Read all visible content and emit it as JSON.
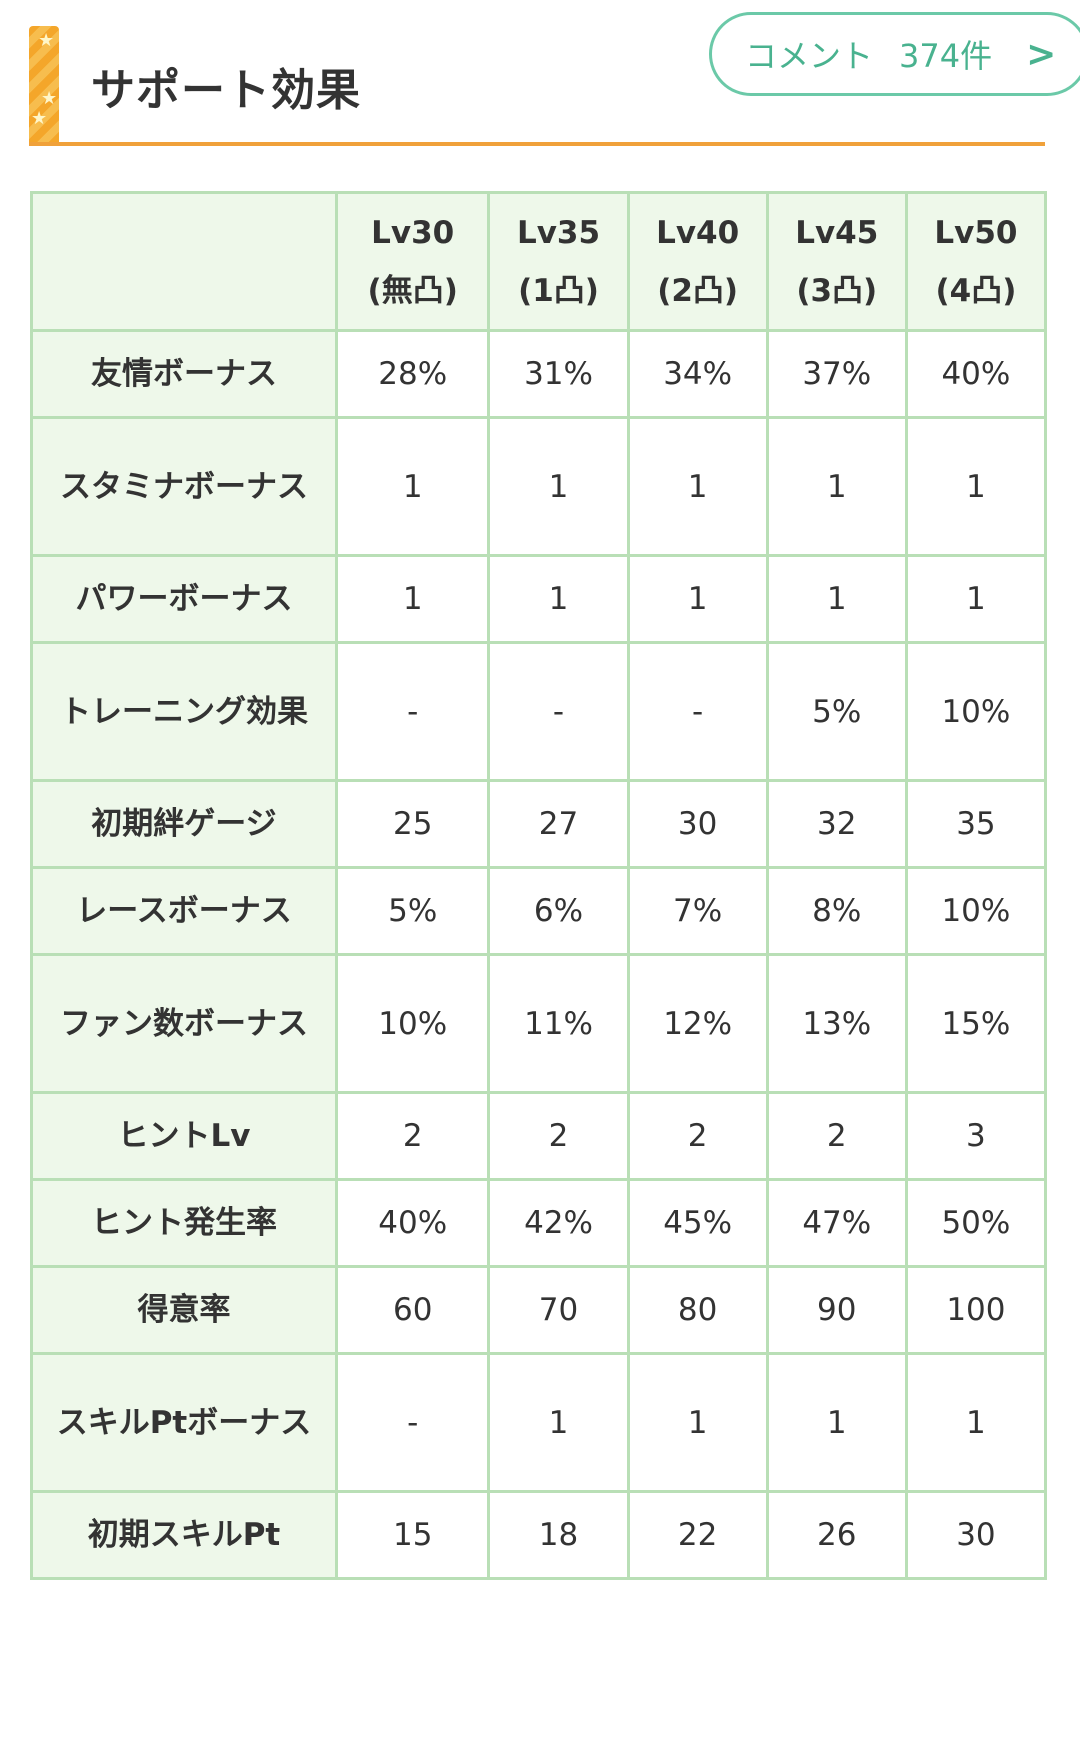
{
  "section": {
    "title": "サポート効果",
    "comment_button": {
      "label": "コメント",
      "count": "374件"
    }
  },
  "table": {
    "columns": [
      {
        "level": "Lv30",
        "limit": "(無凸)"
      },
      {
        "level": "Lv35",
        "limit": "(1凸)"
      },
      {
        "level": "Lv40",
        "limit": "(2凸)"
      },
      {
        "level": "Lv45",
        "limit": "(3凸)"
      },
      {
        "level": "Lv50",
        "limit": "(4凸)"
      }
    ],
    "rows": [
      {
        "label": "友情ボーナス",
        "values": [
          "28%",
          "31%",
          "34%",
          "37%",
          "40%"
        ]
      },
      {
        "label": "スタミナボーナス",
        "values": [
          "1",
          "1",
          "1",
          "1",
          "1"
        ]
      },
      {
        "label": "パワーボーナス",
        "values": [
          "1",
          "1",
          "1",
          "1",
          "1"
        ]
      },
      {
        "label": "トレーニング効果",
        "values": [
          "-",
          "-",
          "-",
          "5%",
          "10%"
        ]
      },
      {
        "label": "初期絆ゲージ",
        "values": [
          "25",
          "27",
          "30",
          "32",
          "35"
        ]
      },
      {
        "label": "レースボーナス",
        "values": [
          "5%",
          "6%",
          "7%",
          "8%",
          "10%"
        ]
      },
      {
        "label": "ファン数ボーナス",
        "values": [
          "10%",
          "11%",
          "12%",
          "13%",
          "15%"
        ]
      },
      {
        "label": "ヒントLv",
        "values": [
          "2",
          "2",
          "2",
          "2",
          "3"
        ]
      },
      {
        "label": "ヒント発生率",
        "values": [
          "40%",
          "42%",
          "45%",
          "47%",
          "50%"
        ]
      },
      {
        "label": "得意率",
        "values": [
          "60",
          "70",
          "80",
          "90",
          "100"
        ]
      },
      {
        "label": "スキルPtボーナス",
        "values": [
          "-",
          "1",
          "1",
          "1",
          "1"
        ]
      },
      {
        "label": "初期スキルPt",
        "values": [
          "15",
          "18",
          "22",
          "26",
          "30"
        ]
      }
    ]
  }
}
